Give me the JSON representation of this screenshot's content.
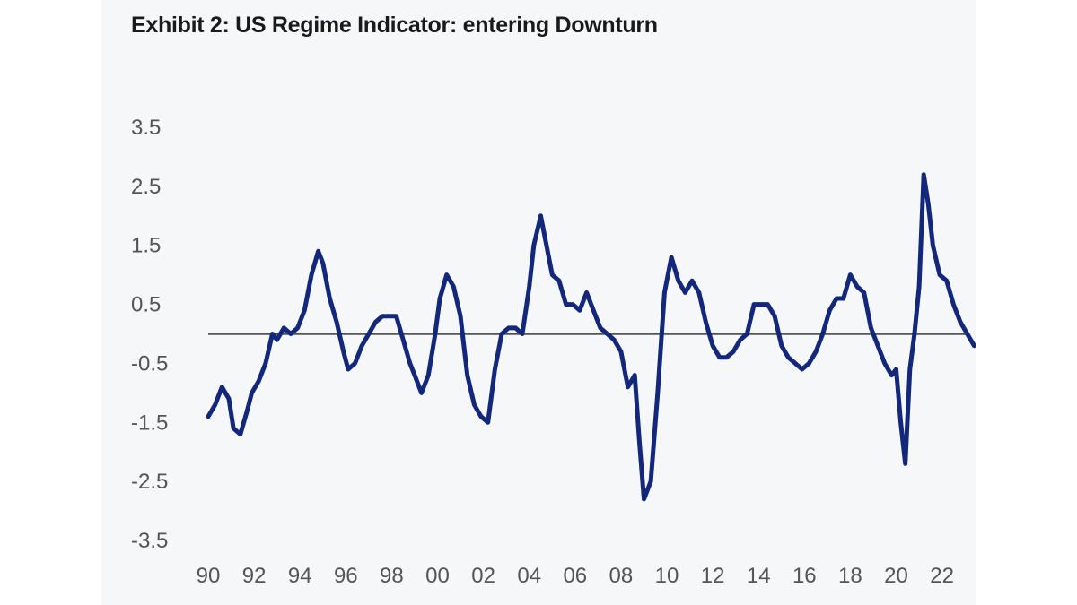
{
  "colors": {
    "series": "#13287a",
    "zero_line": "#555555",
    "panel_background": "#f6f7f9",
    "title": "#1a1a1a"
  },
  "chart_data": {
    "type": "line",
    "title": "Exhibit 2: US Regime Indicator: entering Downturn",
    "xlabel": "",
    "ylabel": "",
    "ylim": [
      -3.5,
      3.5
    ],
    "y_ticks": [
      "3.5",
      "2.5",
      "1.5",
      "0.5",
      "-0.5",
      "-1.5",
      "-2.5",
      "-3.5"
    ],
    "x_ticks": [
      "90",
      "92",
      "94",
      "96",
      "98",
      "00",
      "02",
      "04",
      "06",
      "08",
      "10",
      "12",
      "14",
      "16",
      "18",
      "20",
      "22"
    ],
    "reference_line": 0,
    "grid": false,
    "legend": "none",
    "series": [
      {
        "x": [
          1990.0,
          1990.3,
          1990.6,
          1990.9,
          1991.1,
          1991.4,
          1991.7,
          1991.9,
          1992.2,
          1992.5,
          1992.8,
          1993.0,
          1993.3,
          1993.6,
          1993.9,
          1994.2,
          1994.5,
          1994.8,
          1995.0,
          1995.3,
          1995.6,
          1995.9,
          1996.1,
          1996.4,
          1996.7,
          1997.0,
          1997.3,
          1997.6,
          1997.9,
          1998.2,
          1998.5,
          1998.8,
          1999.0,
          1999.3,
          1999.6,
          1999.9,
          2000.1,
          2000.4,
          2000.7,
          2001.0,
          2001.3,
          2001.6,
          2001.9,
          2002.2,
          2002.5,
          2002.8,
          2003.1,
          2003.4,
          2003.7,
          2004.0,
          2004.2,
          2004.5,
          2004.7,
          2005.0,
          2005.3,
          2005.6,
          2005.9,
          2006.2,
          2006.5,
          2006.8,
          2007.1,
          2007.4,
          2007.7,
          2008.0,
          2008.3,
          2008.6,
          2008.8,
          2009.0,
          2009.3,
          2009.6,
          2009.9,
          2010.2,
          2010.5,
          2010.8,
          2011.1,
          2011.4,
          2011.7,
          2012.0,
          2012.3,
          2012.6,
          2012.9,
          2013.2,
          2013.5,
          2013.8,
          2014.1,
          2014.4,
          2014.7,
          2015.0,
          2015.3,
          2015.6,
          2015.9,
          2016.2,
          2016.5,
          2016.8,
          2017.1,
          2017.4,
          2017.7,
          2018.0,
          2018.3,
          2018.6,
          2018.9,
          2019.2,
          2019.5,
          2019.8,
          2020.0,
          2020.2,
          2020.4,
          2020.6,
          2020.8,
          2021.0,
          2021.2,
          2021.4,
          2021.6,
          2021.9,
          2022.2,
          2022.5,
          2022.8,
          2023.1,
          2023.4
        ],
        "values": [
          -1.4,
          -1.2,
          -0.9,
          -1.1,
          -1.6,
          -1.7,
          -1.3,
          -1.0,
          -0.8,
          -0.5,
          0.0,
          -0.1,
          0.1,
          0.0,
          0.1,
          0.4,
          1.0,
          1.4,
          1.2,
          0.6,
          0.2,
          -0.3,
          -0.6,
          -0.5,
          -0.2,
          0.0,
          0.2,
          0.3,
          0.3,
          0.3,
          -0.1,
          -0.5,
          -0.7,
          -1.0,
          -0.7,
          0.0,
          0.6,
          1.0,
          0.8,
          0.3,
          -0.7,
          -1.2,
          -1.4,
          -1.5,
          -0.6,
          0.0,
          0.1,
          0.1,
          0.0,
          0.8,
          1.5,
          2.0,
          1.6,
          1.0,
          0.9,
          0.5,
          0.5,
          0.4,
          0.7,
          0.4,
          0.1,
          0.0,
          -0.1,
          -0.3,
          -0.9,
          -0.7,
          -1.8,
          -2.8,
          -2.5,
          -1.0,
          0.7,
          1.3,
          0.9,
          0.7,
          0.9,
          0.7,
          0.2,
          -0.2,
          -0.4,
          -0.4,
          -0.3,
          -0.1,
          0.0,
          0.5,
          0.5,
          0.5,
          0.3,
          -0.2,
          -0.4,
          -0.5,
          -0.6,
          -0.5,
          -0.3,
          0.0,
          0.4,
          0.6,
          0.6,
          1.0,
          0.8,
          0.7,
          0.1,
          -0.2,
          -0.5,
          -0.7,
          -0.6,
          -1.5,
          -2.2,
          -0.6,
          0.0,
          0.8,
          2.7,
          2.2,
          1.5,
          1.0,
          0.9,
          0.5,
          0.2,
          0.0,
          -0.2
        ]
      }
    ]
  }
}
